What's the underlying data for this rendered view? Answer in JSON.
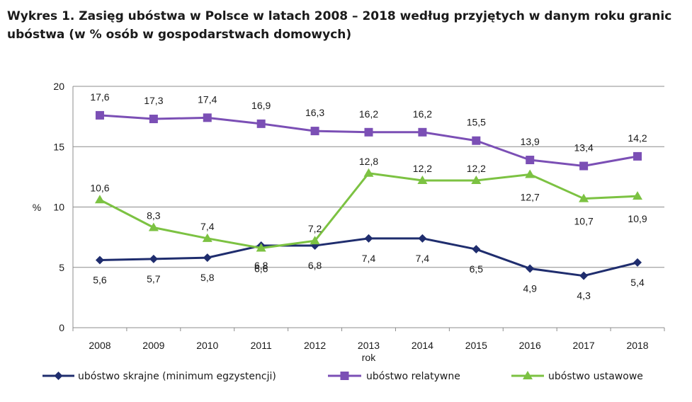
{
  "title": {
    "line1": "Wykres 1. Zasięg ubóstwa w Polsce w latach 2008 – 2018 według przyjętych w danym roku granic",
    "line2": "ubóstwa (w % osób w gospodarstwach domowych)"
  },
  "chart_data": {
    "type": "line",
    "x": [
      "2008",
      "2009",
      "2010",
      "2011",
      "2012",
      "2013",
      "2014",
      "2015",
      "2016",
      "2017",
      "2018"
    ],
    "xlabel": "rok",
    "ylabel": "%",
    "ylim": [
      0,
      20
    ],
    "yticks": [
      "0",
      "5",
      "10",
      "15",
      "20"
    ],
    "grid": "horizontal",
    "legend_position": "bottom",
    "series": [
      {
        "name": "ubóstwo skrajne (minimum egzystencji)",
        "color": "#1f2d6e",
        "marker": "diamond",
        "values": [
          5.6,
          5.7,
          5.8,
          6.8,
          6.8,
          7.4,
          7.4,
          6.5,
          4.9,
          4.3,
          5.4
        ],
        "labels": [
          "5,6",
          "5,7",
          "5,8",
          "6,8",
          "6,8",
          "7,4",
          "7,4",
          "6,5",
          "4,9",
          "4,3",
          "5,4"
        ]
      },
      {
        "name": "ubóstwo relatywne",
        "color": "#7b4fb5",
        "marker": "square",
        "values": [
          17.6,
          17.3,
          17.4,
          16.9,
          16.3,
          16.2,
          16.2,
          15.5,
          13.9,
          13.4,
          14.2
        ],
        "labels": [
          "17,6",
          "17,3",
          "17,4",
          "16,9",
          "16,3",
          "16,2",
          "16,2",
          "15,5",
          "13,9",
          "13,4",
          "14,2"
        ]
      },
      {
        "name": "ubóstwo ustawowe",
        "color": "#7cc242",
        "marker": "triangle",
        "values": [
          10.6,
          8.3,
          7.4,
          6.6,
          7.2,
          12.8,
          12.2,
          12.2,
          12.7,
          10.7,
          10.9
        ],
        "labels": [
          "10,6",
          "8,3",
          "7,4",
          "6,6",
          "7,2",
          "12,8",
          "12,2",
          "12,2",
          "12,7",
          "10,7",
          "10,9"
        ]
      }
    ]
  }
}
